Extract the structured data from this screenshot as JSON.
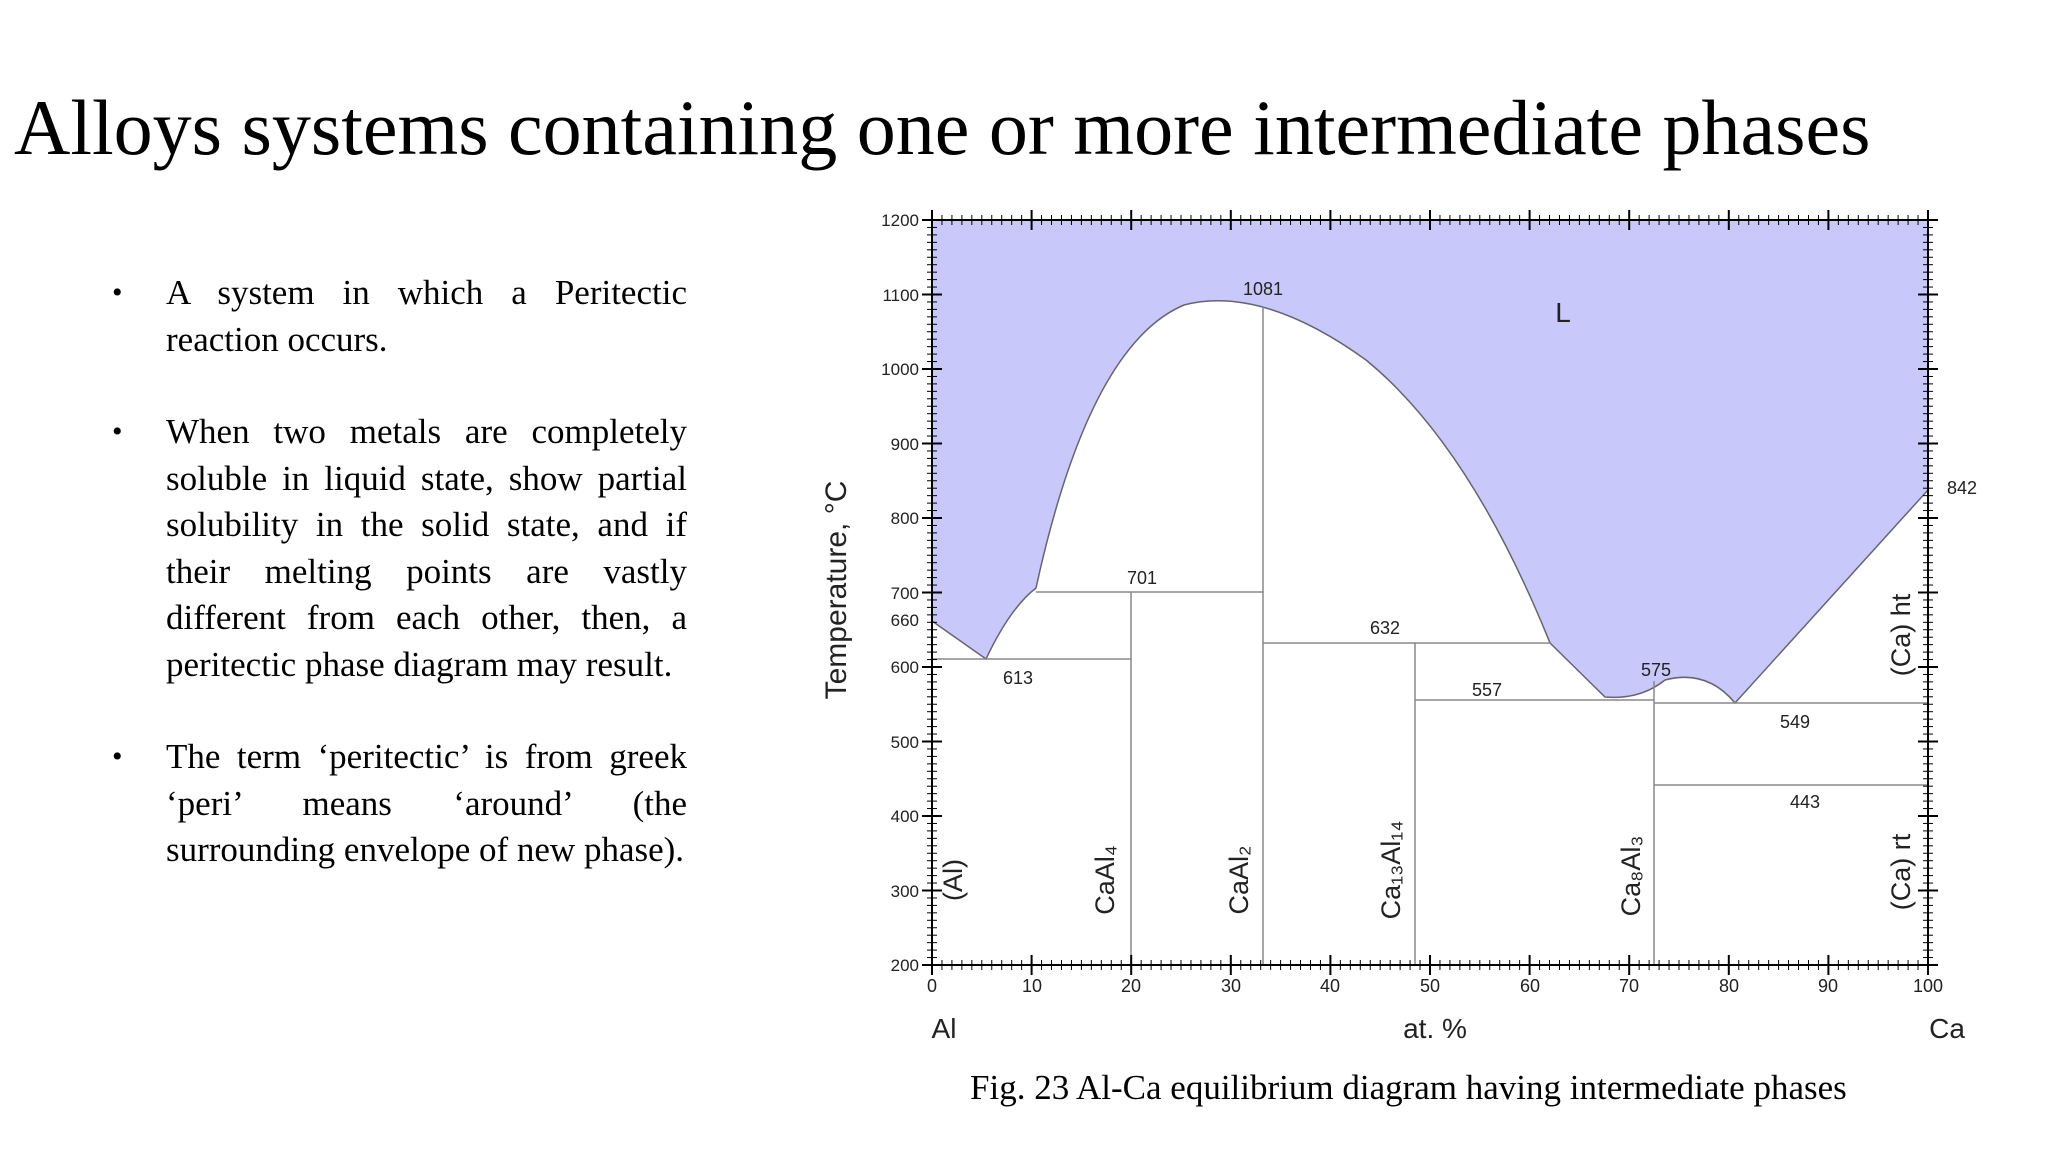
{
  "slide": {
    "title": "Alloys systems containing one or more intermediate phases",
    "bullets": [
      "A system in which a Peritectic reaction occurs.",
      "When two metals are completely soluble in liquid state, show partial solubility in the solid state, and if their melting points are vastly different from each other, then, a peritectic phase diagram may result.",
      "The term ‘peritectic’ is from greek ‘peri’ means ‘around’ (the surrounding envelope of new phase)."
    ],
    "bullet_symbol": "•",
    "caption": "Fig. 23 Al-Ca equilibrium diagram having intermediate phases"
  },
  "diagram": {
    "xlabel": "at. %",
    "ylabel": "Temperature, °C",
    "left_element": "Al",
    "right_element": "Ca",
    "liquid_label": "L",
    "liquid_color": "#c8c8fa",
    "x_ticks": [
      "0",
      "10",
      "20",
      "30",
      "40",
      "50",
      "60",
      "70",
      "80",
      "90",
      "100"
    ],
    "y_ticks": [
      "1200",
      "1100",
      "1000",
      "900",
      "800",
      "700",
      "660",
      "600",
      "500",
      "400",
      "300",
      "200"
    ],
    "temperature_labels": [
      "1081",
      "701",
      "632",
      "613",
      "557",
      "575",
      "549",
      "443",
      "842"
    ],
    "phase_labels": {
      "al": "(Al)",
      "caal4": "CaAl₄",
      "caal2": "CaAl₂",
      "ca13al14": "Ca₁₃Al₁₄",
      "ca8al3": "Ca₈Al₃",
      "ca_ht": "(Ca) ht",
      "ca_rt": "(Ca) rt"
    }
  }
}
